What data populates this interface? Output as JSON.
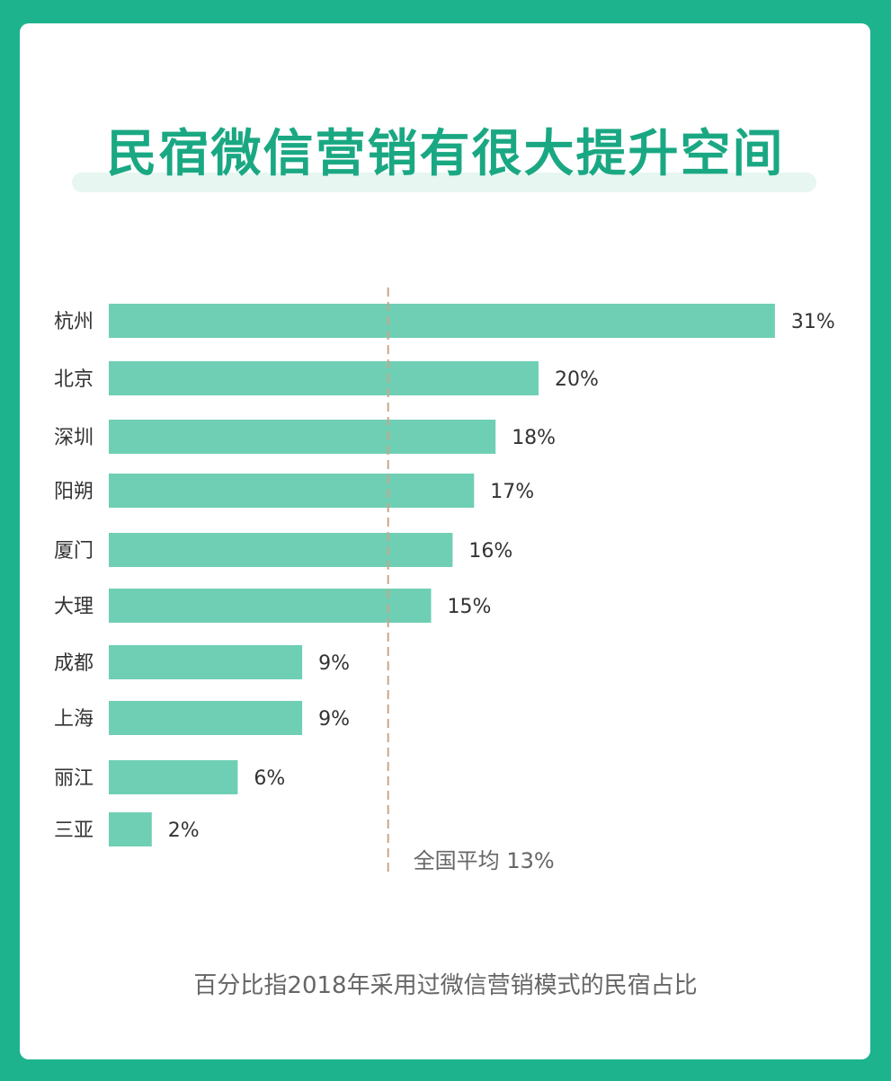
{
  "title": "民宿微信营销有很大提升空间",
  "footnote": "百分比指2018年采用过微信营销模式的民宿占比",
  "colors": {
    "frame": "#1db38c",
    "bar": "#6fcfb4",
    "title": "#1aa883",
    "avg_line": "#c9a58c"
  },
  "chart_data": {
    "type": "bar",
    "orientation": "horizontal",
    "categories": [
      "杭州",
      "北京",
      "深圳",
      "阳朔",
      "厦门",
      "大理",
      "成都",
      "上海",
      "丽江",
      "三亚"
    ],
    "values": [
      31,
      20,
      18,
      17,
      16,
      15,
      9,
      9,
      6,
      2
    ],
    "value_labels": [
      "31%",
      "20%",
      "18%",
      "17%",
      "16%",
      "15%",
      "9%",
      "9%",
      "6%",
      "2%"
    ],
    "unit": "%",
    "reference_line": {
      "value": 13,
      "label": "全国平均 13%",
      "style": "dashed"
    },
    "xlabel": "",
    "ylabel": "",
    "grid": false,
    "legend": "none"
  }
}
